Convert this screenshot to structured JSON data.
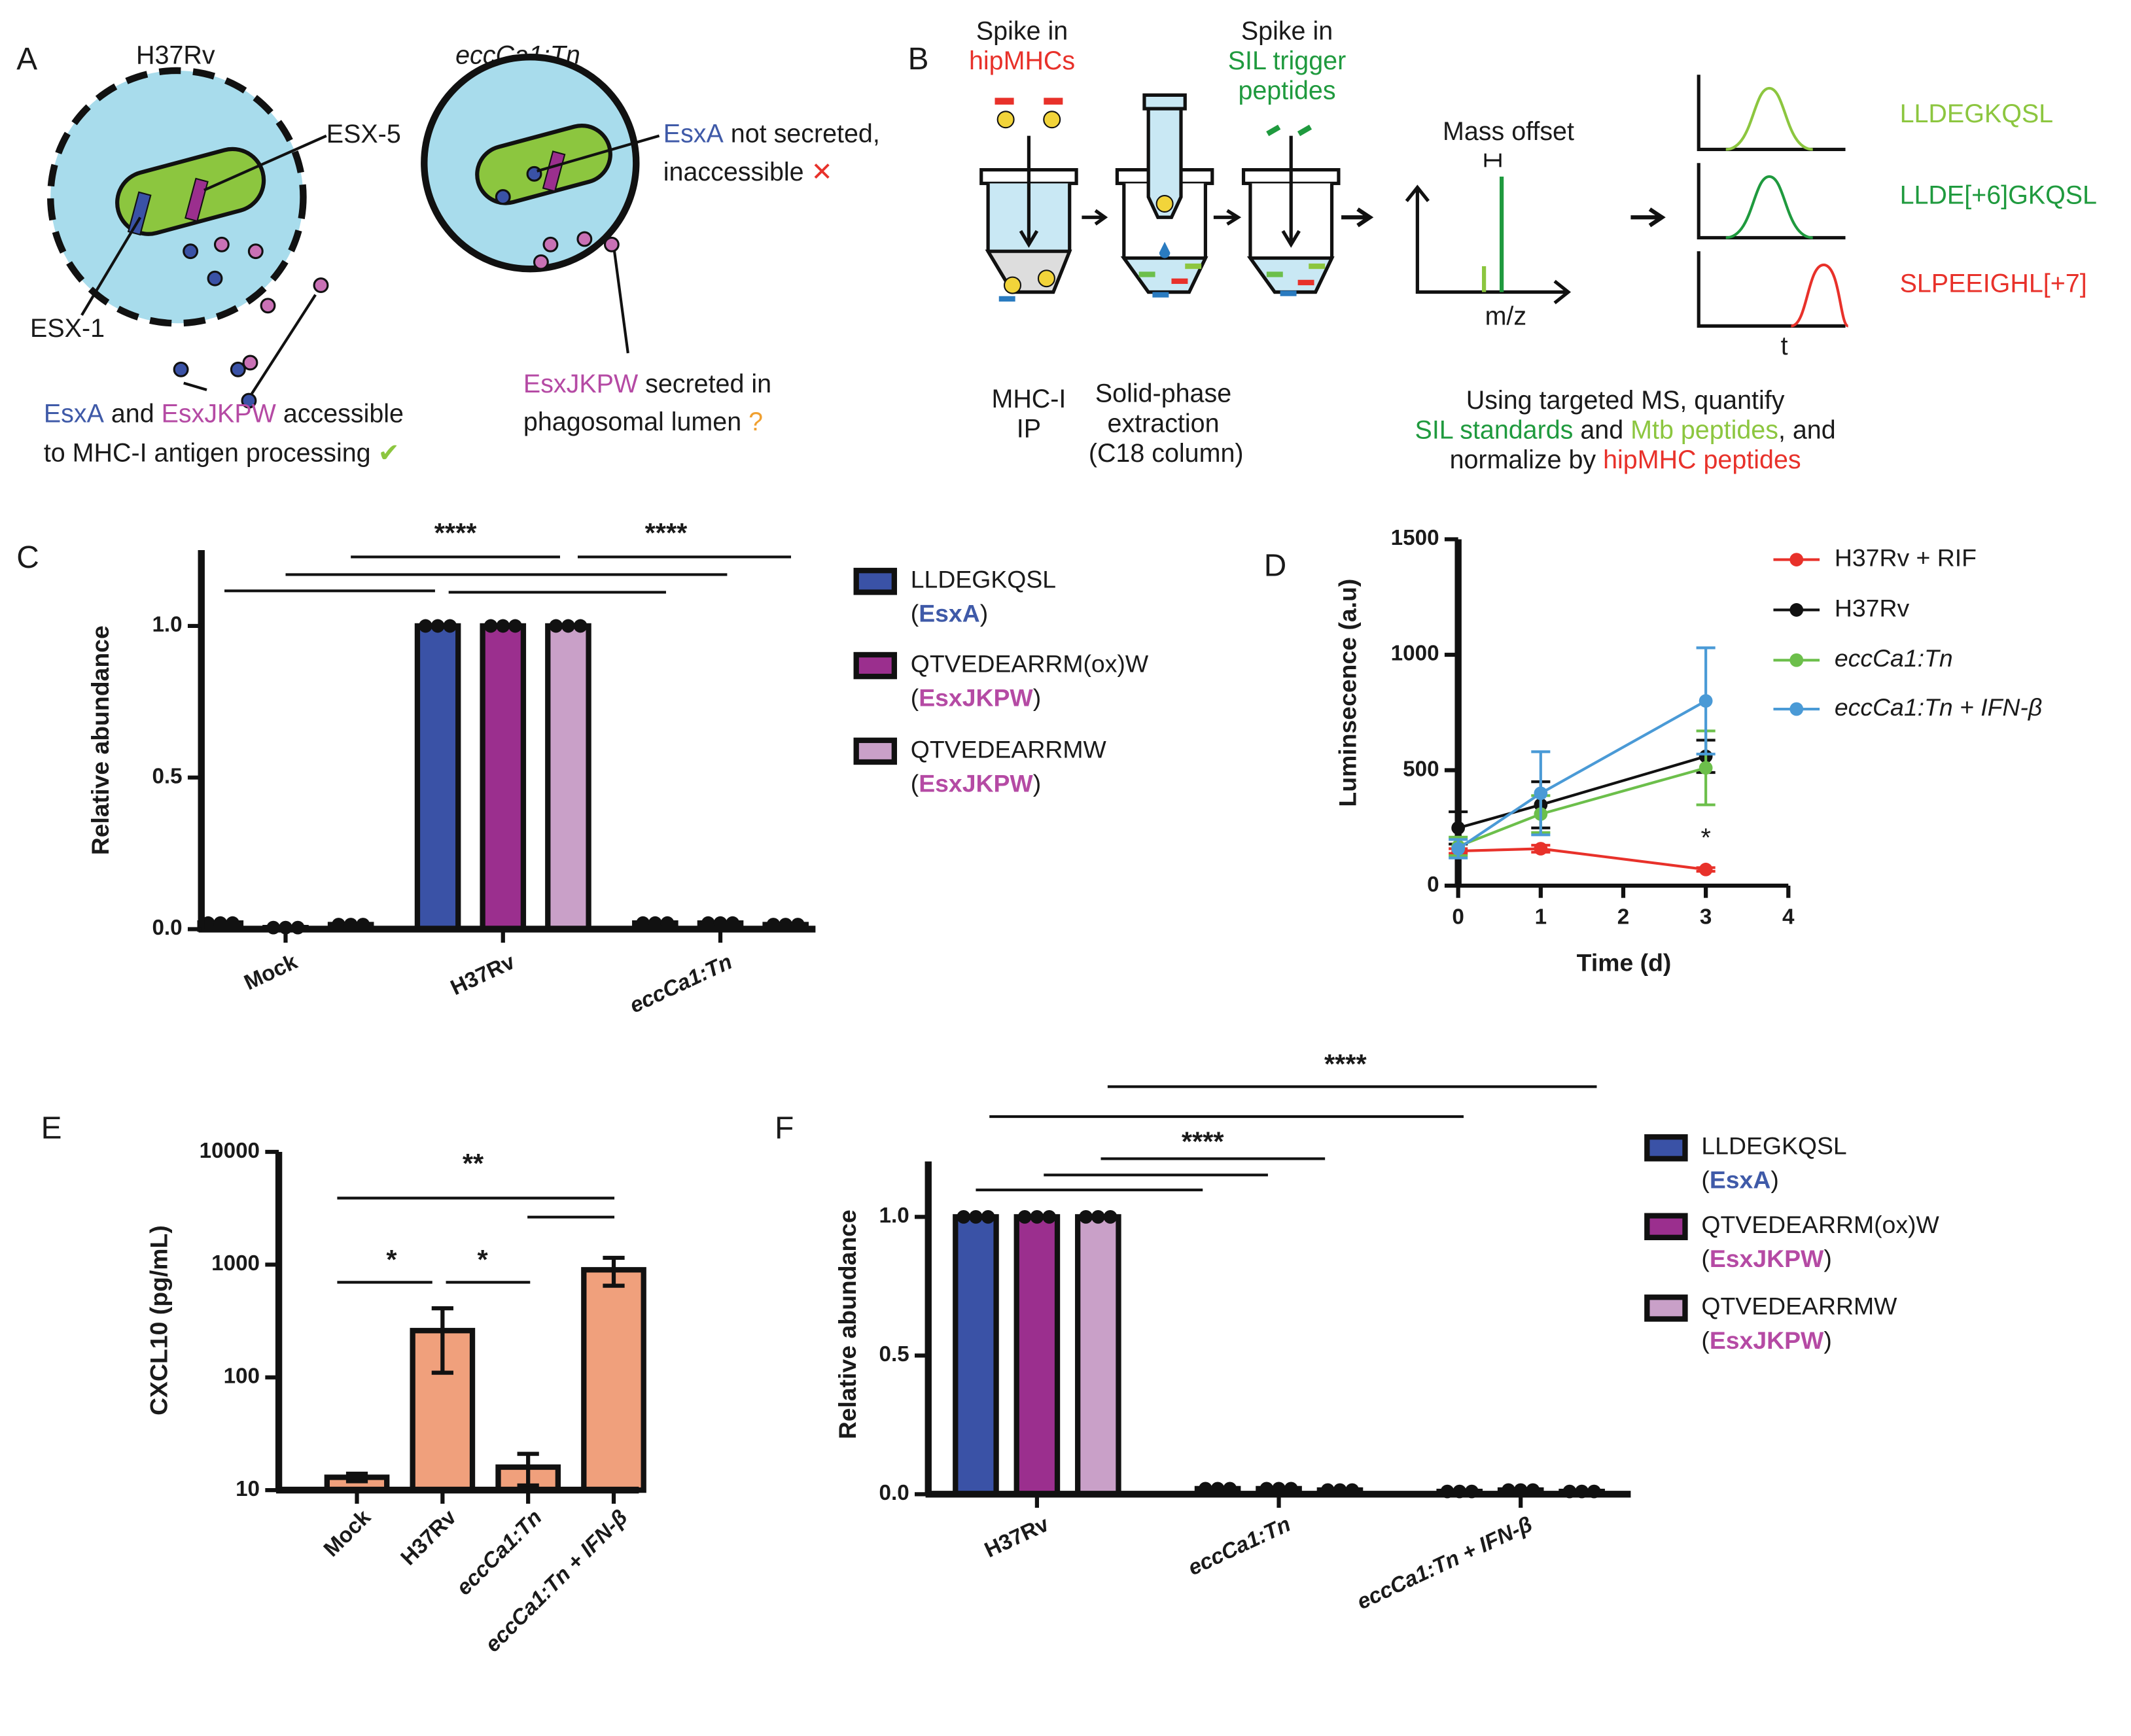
{
  "panel_a": {
    "label": "A",
    "strain_1": "H37Rv",
    "strain_2": "eccCa1:Tn",
    "esx5": "ESX-5",
    "esx1": "ESX-1",
    "note_1": [
      "EsxA",
      " not secreted,"
    ],
    "note_2": "inaccessible",
    "cross": "✕",
    "caption_1": [
      "EsxA",
      " and ",
      "EsxJKPW",
      " accessible"
    ],
    "caption_2": "to MHC-I antigen processing",
    "check": "✔",
    "caption_3": [
      "EsxJKPW",
      " secreted in"
    ],
    "caption_4": "phagosomal lumen",
    "question": "?"
  },
  "panel_b": {
    "label": "B",
    "spike_1": [
      "Spike in",
      "hipMHCs"
    ],
    "spike_2": [
      "Spike in",
      "SIL trigger",
      "peptides"
    ],
    "mass_offset": "Mass offset",
    "mz": "m/z",
    "t": "t",
    "traces": [
      "LLDEGKQSL",
      "LLDE[+6]GKQSL",
      "SLPEEIGHL[+7]"
    ],
    "step_1": [
      "MHC-I",
      "IP"
    ],
    "step_2": [
      "Solid-phase",
      "extraction",
      "(C18 column)"
    ],
    "summary_1": "Using targeted MS, quantify",
    "summary_2": [
      "SIL standards",
      " and ",
      "Mtb peptides",
      ", and"
    ],
    "summary_3": [
      "normalize by ",
      "hipMHC peptides"
    ]
  },
  "chart_data": [
    {
      "type": "bar",
      "panel": "C",
      "ylabel": "Relative abundance",
      "categories": [
        "Mock",
        "H37Rv",
        "eccCa1:Tn"
      ],
      "series": [
        {
          "name": "LLDEGKQSL",
          "protein": "(EsxA)",
          "protein_color": "#3f5aa8",
          "color": "#3a52a6",
          "values": [
            0.02,
            1,
            0.02
          ]
        },
        {
          "name": "QTVEDEARRM(ox)W",
          "protein": "(EsxJKPW)",
          "protein_color": "#b54aa4",
          "color": "#9b2f8e",
          "values": [
            0.005,
            1,
            0.02
          ]
        },
        {
          "name": "QTVEDEARRMW",
          "protein": "(EsxJKPW)",
          "protein_color": "#b54aa4",
          "color": "#c9a0c8",
          "values": [
            0.015,
            1,
            0.015
          ]
        }
      ],
      "ylim": [
        0,
        1.25
      ],
      "yticks": [
        {
          "value": 0,
          "label": "0.0"
        },
        {
          "value": 0.5,
          "label": "0.5"
        },
        {
          "value": 1,
          "label": "1.0"
        }
      ],
      "annotations": [
        "****",
        "****"
      ]
    },
    {
      "type": "line",
      "panel": "D",
      "xlabel": "Time (d)",
      "ylabel": "Luminsecence (a.u)",
      "x": [
        0,
        1,
        3
      ],
      "series": [
        {
          "name": "H37Rv + RIF",
          "color": "#e8312a",
          "values": [
            150,
            160,
            70
          ],
          "errors": [
            10,
            15,
            8
          ]
        },
        {
          "name": "H37Rv",
          "color": "#111111",
          "values": [
            250,
            350,
            560
          ],
          "errors": [
            70,
            100,
            70
          ]
        },
        {
          "name": "eccCa1:Tn",
          "color": "#6cbf4b",
          "values": [
            170,
            310,
            510
          ],
          "errors": [
            40,
            80,
            160
          ]
        },
        {
          "name": "eccCa1:Tn + IFN-β",
          "color": "#4a9ad6",
          "values": [
            160,
            400,
            800
          ],
          "errors": [
            40,
            180,
            230
          ]
        }
      ],
      "xlim": [
        0,
        4
      ],
      "xticks": [
        0,
        1,
        2,
        3,
        4
      ],
      "ylim": [
        0,
        1500
      ],
      "yticks": [
        0,
        500,
        1000,
        1500
      ],
      "annotations": [
        "*"
      ]
    },
    {
      "type": "bar",
      "panel": "E",
      "ylabel": "CXCL10 (pg/mL)",
      "log_scale": true,
      "categories": [
        "Mock",
        "H37Rv",
        "eccCa1:Tn",
        "eccCa1:Tn + IFN-β"
      ],
      "values": [
        13,
        260,
        16,
        900
      ],
      "errors": [
        1,
        150,
        5,
        250
      ],
      "color": "#f0a07c",
      "ylim": [
        10,
        10000
      ],
      "yticks": [
        10,
        100,
        1000,
        10000
      ],
      "annotations": [
        "**",
        "*",
        "*"
      ]
    },
    {
      "type": "bar",
      "panel": "F",
      "ylabel": "Relative abundance",
      "categories": [
        "H37Rv",
        "eccCa1:Tn",
        "eccCa1:Tn + IFN-β"
      ],
      "series": [
        {
          "name": "LLDEGKQSL",
          "protein": "(EsxA)",
          "protein_color": "#3f5aa8",
          "color": "#3a52a6",
          "values": [
            1,
            0.02,
            0.01
          ]
        },
        {
          "name": "QTVEDEARRM(ox)W",
          "protein": "(EsxJKPW)",
          "protein_color": "#b54aa4",
          "color": "#9b2f8e",
          "values": [
            1,
            0.02,
            0.015
          ]
        },
        {
          "name": "QTVEDEARRMW",
          "protein": "(EsxJKPW)",
          "protein_color": "#b54aa4",
          "color": "#c9a0c8",
          "values": [
            1,
            0.015,
            0.01
          ]
        }
      ],
      "ylim": [
        0,
        1.2
      ],
      "yticks": [
        {
          "value": 0,
          "label": "0.0"
        },
        {
          "value": 0.5,
          "label": "0.5"
        },
        {
          "value": 1,
          "label": "1.0"
        }
      ],
      "annotations": [
        "****",
        "****"
      ]
    }
  ]
}
